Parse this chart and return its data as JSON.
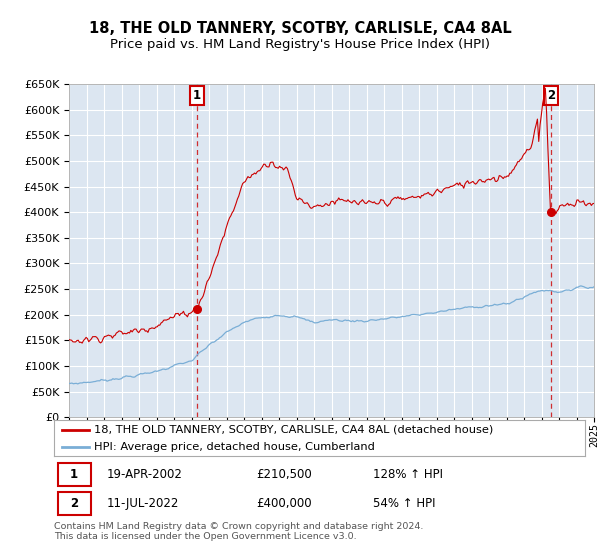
{
  "title": "18, THE OLD TANNERY, SCOTBY, CARLISLE, CA4 8AL",
  "subtitle": "Price paid vs. HM Land Registry's House Price Index (HPI)",
  "legend_line1": "18, THE OLD TANNERY, SCOTBY, CARLISLE, CA4 8AL (detached house)",
  "legend_line2": "HPI: Average price, detached house, Cumberland",
  "annotation1_date": "19-APR-2002",
  "annotation1_price": "£210,500",
  "annotation1_hpi": "128% ↑ HPI",
  "annotation2_date": "11-JUL-2022",
  "annotation2_price": "£400,000",
  "annotation2_hpi": "54% ↑ HPI",
  "footnote": "Contains HM Land Registry data © Crown copyright and database right 2024.\nThis data is licensed under the Open Government Licence v3.0.",
  "sale1_x": 2002.29,
  "sale1_y": 210500,
  "sale2_x": 2022.53,
  "sale2_y": 400000,
  "ylim": [
    0,
    650000
  ],
  "xlim_start": 1995.0,
  "xlim_end": 2025.0,
  "red_color": "#cc0000",
  "blue_color": "#7aaed6",
  "bg_color": "#dce6f1",
  "grid_color": "#ffffff",
  "title_fontsize": 10.5,
  "subtitle_fontsize": 9.5,
  "hpi_base": [
    1995.0,
    1996.0,
    1997.0,
    1998.0,
    1999.0,
    2000.0,
    2001.0,
    2002.0,
    2003.0,
    2004.0,
    2005.0,
    2006.0,
    2007.0,
    2008.0,
    2009.0,
    2010.0,
    2011.0,
    2012.0,
    2013.0,
    2014.0,
    2015.0,
    2016.0,
    2017.0,
    2018.0,
    2019.0,
    2020.0,
    2021.0,
    2022.0,
    2023.0,
    2024.0,
    2025.0
  ],
  "hpi_vals": [
    65000,
    68000,
    72000,
    77000,
    82000,
    90000,
    100000,
    110000,
    140000,
    165000,
    185000,
    195000,
    200000,
    195000,
    185000,
    190000,
    188000,
    188000,
    192000,
    196000,
    200000,
    205000,
    210000,
    215000,
    218000,
    220000,
    235000,
    248000,
    245000,
    252000,
    255000
  ],
  "red_base": [
    1995.0,
    1996.0,
    1997.0,
    1998.0,
    1999.0,
    2000.0,
    2001.0,
    2002.3,
    2003.0,
    2004.0,
    2005.0,
    2006.5,
    2007.5,
    2008.0,
    2009.0,
    2010.0,
    2011.0,
    2012.0,
    2013.0,
    2014.0,
    2015.0,
    2016.0,
    2017.0,
    2018.0,
    2019.0,
    2020.0,
    2021.5,
    2022.0,
    2022.53,
    2023.0,
    2024.0,
    2025.0
  ],
  "red_vals": [
    148000,
    152000,
    157000,
    163000,
    170000,
    180000,
    196000,
    210500,
    270000,
    370000,
    460000,
    500000,
    480000,
    430000,
    410000,
    420000,
    420000,
    415000,
    420000,
    425000,
    430000,
    440000,
    450000,
    460000,
    465000,
    470000,
    530000,
    630000,
    400000,
    410000,
    420000,
    415000
  ]
}
